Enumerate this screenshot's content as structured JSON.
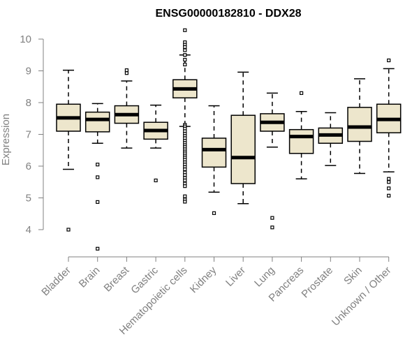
{
  "chart_data": {
    "type": "boxplot",
    "title": "ENSG00000182810 - DDX28",
    "ylabel": "Expression",
    "xlabel": "",
    "ylim": [
      3.2,
      10.3
    ],
    "yticks": [
      4,
      5,
      6,
      7,
      8,
      9,
      10
    ],
    "box_fill": "#ede6cc",
    "box_stroke": "#000000",
    "axis_color": "#808080",
    "categories": [
      "Bladder",
      "Brain",
      "Breast",
      "Gastric",
      "Hematopoietic cells",
      "Kidney",
      "Liver",
      "Lung",
      "Pancreas",
      "Prostate",
      "Skin",
      "Unknown / Other"
    ],
    "boxes": [
      {
        "q1": 7.1,
        "median": 7.52,
        "q3": 7.95,
        "whisker_low": 5.9,
        "whisker_high": 9.02,
        "outliers": [
          4.0
        ]
      },
      {
        "q1": 7.08,
        "median": 7.47,
        "q3": 7.7,
        "whisker_low": 6.72,
        "whisker_high": 7.97,
        "outliers": [
          6.05,
          5.65,
          4.87,
          3.4
        ]
      },
      {
        "q1": 7.35,
        "median": 7.62,
        "q3": 7.9,
        "whisker_low": 6.57,
        "whisker_high": 8.68,
        "outliers": [
          8.93,
          9.02
        ]
      },
      {
        "q1": 6.85,
        "median": 7.12,
        "q3": 7.38,
        "whisker_low": 6.57,
        "whisker_high": 7.92,
        "outliers": [
          5.55
        ]
      },
      {
        "q1": 8.15,
        "median": 8.43,
        "q3": 8.72,
        "whisker_low": 7.25,
        "whisker_high": 9.5,
        "outliers": [
          10.28,
          9.9,
          9.82,
          9.75,
          9.65,
          9.5,
          9.35,
          9.2,
          7.3,
          7.25,
          7.18,
          7.1,
          7.02,
          6.95,
          6.88,
          6.8,
          6.73,
          6.66,
          6.6,
          6.53,
          6.46,
          6.4,
          6.33,
          6.27,
          6.2,
          6.12,
          6.05,
          5.97,
          5.9,
          5.8,
          5.72,
          5.63,
          5.55,
          5.45,
          5.37,
          5.05,
          4.95,
          4.88
        ]
      },
      {
        "q1": 5.97,
        "median": 6.52,
        "q3": 6.88,
        "whisker_low": 5.18,
        "whisker_high": 7.9,
        "outliers": [
          4.52
        ]
      },
      {
        "q1": 5.45,
        "median": 6.27,
        "q3": 7.6,
        "whisker_low": 4.82,
        "whisker_high": 8.96,
        "outliers": []
      },
      {
        "q1": 7.1,
        "median": 7.38,
        "q3": 7.65,
        "whisker_low": 6.6,
        "whisker_high": 8.3,
        "outliers": [
          4.37,
          4.07
        ]
      },
      {
        "q1": 6.4,
        "median": 6.93,
        "q3": 7.15,
        "whisker_low": 5.6,
        "whisker_high": 7.72,
        "outliers": [
          8.3
        ]
      },
      {
        "q1": 6.72,
        "median": 6.98,
        "q3": 7.2,
        "whisker_low": 6.02,
        "whisker_high": 7.68,
        "outliers": []
      },
      {
        "q1": 6.78,
        "median": 7.23,
        "q3": 7.85,
        "whisker_low": 5.77,
        "whisker_high": 8.75,
        "outliers": []
      },
      {
        "q1": 7.05,
        "median": 7.47,
        "q3": 7.95,
        "whisker_low": 5.82,
        "whisker_high": 9.07,
        "outliers": [
          9.33,
          5.6,
          5.5,
          5.3,
          5.07
        ]
      }
    ]
  }
}
